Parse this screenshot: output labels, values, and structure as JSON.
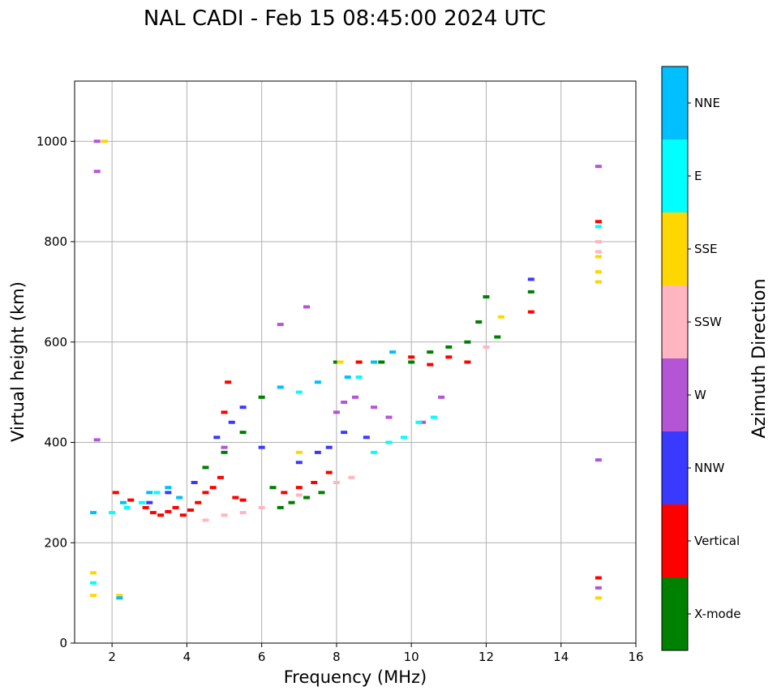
{
  "chart_data": {
    "type": "scatter",
    "title": "NAL CADI - Feb 15 08:45:00 2024 UTC",
    "xlabel": "Frequency (MHz)",
    "ylabel": "Virtual height (km)",
    "xlim": [
      1,
      16
    ],
    "ylim": [
      0,
      1120
    ],
    "xticks": [
      2,
      4,
      6,
      8,
      10,
      12,
      14,
      16
    ],
    "yticks": [
      0,
      200,
      400,
      600,
      800,
      1000
    ],
    "grid": true,
    "colorbar": {
      "label": "Azimuth Direction",
      "position": "right",
      "categories": [
        {
          "name": "X-mode",
          "color": "#008000"
        },
        {
          "name": "Vertical",
          "color": "#ff0000"
        },
        {
          "name": "NNW",
          "color": "#3a3aff"
        },
        {
          "name": "W",
          "color": "#b455d6"
        },
        {
          "name": "SSW",
          "color": "#ffb6c1"
        },
        {
          "name": "SSE",
          "color": "#ffd700"
        },
        {
          "name": "E",
          "color": "#00ffff"
        },
        {
          "name": "NNE",
          "color": "#00bfff"
        }
      ]
    },
    "series": [
      {
        "name": "Vertical",
        "points": [
          [
            2.1,
            300
          ],
          [
            2.5,
            285
          ],
          [
            2.9,
            270
          ],
          [
            3.1,
            260
          ],
          [
            3.3,
            255
          ],
          [
            3.5,
            262
          ],
          [
            3.7,
            270
          ],
          [
            3.9,
            255
          ],
          [
            4.1,
            265
          ],
          [
            4.3,
            280
          ],
          [
            4.5,
            300
          ],
          [
            4.7,
            310
          ],
          [
            4.9,
            330
          ],
          [
            5.0,
            460
          ],
          [
            5.1,
            520
          ],
          [
            5.3,
            290
          ],
          [
            5.5,
            285
          ],
          [
            6.6,
            300
          ],
          [
            7.0,
            310
          ],
          [
            7.4,
            320
          ],
          [
            7.8,
            340
          ],
          [
            8.0,
            560
          ],
          [
            8.6,
            560
          ],
          [
            10.0,
            570
          ],
          [
            10.5,
            555
          ],
          [
            11.0,
            570
          ],
          [
            11.5,
            560
          ],
          [
            13.2,
            660
          ],
          [
            15.0,
            840
          ],
          [
            15.0,
            130
          ]
        ]
      },
      {
        "name": "X-mode",
        "points": [
          [
            4.5,
            350
          ],
          [
            5.0,
            380
          ],
          [
            5.5,
            420
          ],
          [
            6.0,
            490
          ],
          [
            6.3,
            310
          ],
          [
            6.5,
            270
          ],
          [
            6.8,
            280
          ],
          [
            7.2,
            290
          ],
          [
            7.6,
            300
          ],
          [
            8.0,
            560
          ],
          [
            9.2,
            560
          ],
          [
            10.0,
            560
          ],
          [
            10.5,
            580
          ],
          [
            11.0,
            590
          ],
          [
            11.5,
            600
          ],
          [
            11.8,
            640
          ],
          [
            12.0,
            690
          ],
          [
            12.3,
            610
          ],
          [
            13.2,
            700
          ]
        ]
      },
      {
        "name": "NNW",
        "points": [
          [
            3.0,
            280
          ],
          [
            3.5,
            300
          ],
          [
            4.2,
            320
          ],
          [
            4.8,
            410
          ],
          [
            5.2,
            440
          ],
          [
            5.5,
            470
          ],
          [
            6.0,
            390
          ],
          [
            7.0,
            360
          ],
          [
            7.5,
            380
          ],
          [
            7.8,
            390
          ],
          [
            8.2,
            420
          ],
          [
            8.8,
            410
          ],
          [
            13.2,
            725
          ]
        ]
      },
      {
        "name": "W",
        "points": [
          [
            1.6,
            1000
          ],
          [
            1.6,
            940
          ],
          [
            1.6,
            405
          ],
          [
            5.0,
            390
          ],
          [
            6.5,
            635
          ],
          [
            7.2,
            670
          ],
          [
            8.0,
            460
          ],
          [
            8.2,
            480
          ],
          [
            8.5,
            490
          ],
          [
            9.0,
            470
          ],
          [
            9.4,
            450
          ],
          [
            10.3,
            440
          ],
          [
            10.8,
            490
          ],
          [
            15.0,
            950
          ],
          [
            15.0,
            365
          ],
          [
            15.0,
            110
          ]
        ]
      },
      {
        "name": "SSW",
        "points": [
          [
            4.5,
            245
          ],
          [
            5.0,
            255
          ],
          [
            5.5,
            260
          ],
          [
            6.0,
            270
          ],
          [
            7.0,
            295
          ],
          [
            8.0,
            320
          ],
          [
            8.4,
            330
          ],
          [
            12.0,
            590
          ],
          [
            15.0,
            800
          ],
          [
            15.0,
            780
          ]
        ]
      },
      {
        "name": "SSE",
        "points": [
          [
            1.5,
            140
          ],
          [
            1.5,
            95
          ],
          [
            1.8,
            1000
          ],
          [
            2.2,
            95
          ],
          [
            7.0,
            380
          ],
          [
            8.1,
            560
          ],
          [
            12.4,
            650
          ],
          [
            15.0,
            770
          ],
          [
            15.0,
            740
          ],
          [
            15.0,
            720
          ],
          [
            15.0,
            90
          ]
        ]
      },
      {
        "name": "E",
        "points": [
          [
            1.5,
            120
          ],
          [
            2.0,
            260
          ],
          [
            2.4,
            270
          ],
          [
            2.8,
            280
          ],
          [
            3.2,
            300
          ],
          [
            7.0,
            500
          ],
          [
            8.6,
            530
          ],
          [
            9.0,
            380
          ],
          [
            9.4,
            400
          ],
          [
            9.8,
            410
          ],
          [
            10.2,
            440
          ],
          [
            10.6,
            450
          ],
          [
            15.0,
            830
          ]
        ]
      },
      {
        "name": "NNE",
        "points": [
          [
            1.5,
            260
          ],
          [
            2.2,
            90
          ],
          [
            2.3,
            280
          ],
          [
            3.0,
            300
          ],
          [
            3.5,
            310
          ],
          [
            3.8,
            290
          ],
          [
            6.5,
            510
          ],
          [
            7.5,
            520
          ],
          [
            8.3,
            530
          ],
          [
            9.0,
            560
          ],
          [
            9.5,
            580
          ]
        ]
      }
    ]
  }
}
